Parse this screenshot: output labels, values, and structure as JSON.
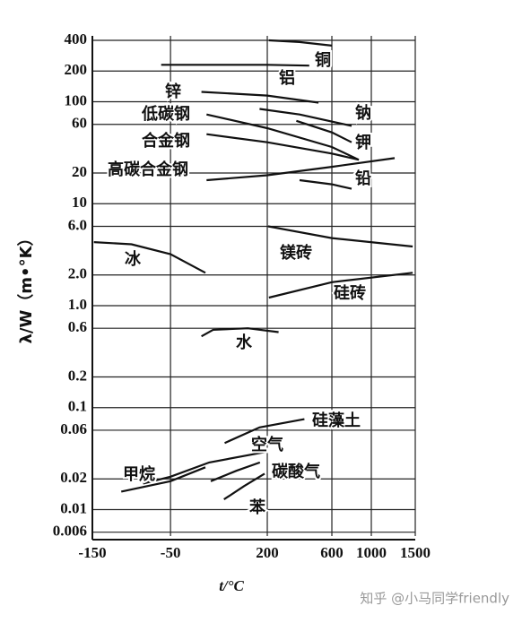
{
  "chart_data": {
    "type": "line",
    "x_label": "t/°C",
    "y_label": "λ/W（m•°K）",
    "watermark": "知乎 @小马同学friendly",
    "y_log": true,
    "grid": true,
    "color": "#111",
    "xlim": [
      -150,
      1500
    ],
    "xticks": [
      -150,
      -50,
      200,
      600,
      1000,
      1500
    ],
    "ylim": [
      0.0055,
      400
    ],
    "yticks": [
      400,
      200,
      100,
      60,
      20,
      10,
      {
        "value": 6,
        "label": "6.0"
      },
      {
        "value": 2,
        "label": "2.0"
      },
      {
        "value": 1,
        "label": "1.0"
      },
      0.6,
      0.2,
      0.1,
      0.06,
      0.02,
      0.01,
      0.006
    ],
    "series": [
      {
        "name": "铜",
        "x": [
          210,
          400,
          600
        ],
        "values": [
          400,
          385,
          355
        ]
      },
      {
        "name": "铝",
        "x": [
          -62,
          200,
          460
        ],
        "values": [
          230,
          230,
          226
        ]
      },
      {
        "name": "锌",
        "x": [
          30,
          200,
          517
        ],
        "values": [
          125,
          115,
          98
        ]
      },
      {
        "name": "钠",
        "x": [
          180,
          400,
          800
        ],
        "values": [
          85,
          75,
          58
        ]
      },
      {
        "name": "钾",
        "x": [
          380,
          600,
          800
        ],
        "values": [
          65,
          50,
          40
        ]
      },
      {
        "name": "铅",
        "x": [
          400,
          600,
          800
        ],
        "values": [
          17,
          15.5,
          14
        ]
      },
      {
        "name": "低碳钢",
        "x": [
          43,
          200,
          600,
          873
        ],
        "values": [
          75,
          55,
          36,
          27
        ]
      },
      {
        "name": "合金钢",
        "x": [
          43,
          200,
          600,
          873
        ],
        "values": [
          48,
          40,
          31,
          27
        ]
      },
      {
        "name": "高碳合金钢",
        "x": [
          43,
          200,
          600,
          1265
        ],
        "values": [
          17,
          19,
          23,
          28
        ]
      },
      {
        "name": "镁砖",
        "x": [
          205,
          600,
          1470
        ],
        "values": [
          6.0,
          4.6,
          3.8
        ]
      },
      {
        "name": "硅砖",
        "x": [
          210,
          600,
          1470
        ],
        "values": [
          1.2,
          1.7,
          2.1
        ]
      },
      {
        "name": "冰",
        "x": [
          -148,
          -100,
          -50,
          40
        ],
        "values": [
          4.2,
          4.0,
          3.2,
          2.1
        ]
      },
      {
        "name": "水",
        "x": [
          30,
          60,
          150,
          270
        ],
        "values": [
          0.5,
          0.58,
          0.6,
          0.55
        ]
      },
      {
        "name": "硅藻土",
        "x": [
          90,
          180,
          430
        ],
        "values": [
          0.045,
          0.064,
          0.077
        ]
      },
      {
        "name": "空气",
        "x": [
          -85,
          -50,
          50,
          200
        ],
        "values": [
          0.018,
          0.021,
          0.029,
          0.037
        ]
      },
      {
        "name": "甲烷",
        "x": [
          -113,
          -50,
          40
        ],
        "values": [
          0.015,
          0.019,
          0.026
        ]
      },
      {
        "name": "碳酸气",
        "x": [
          54,
          120,
          181
        ],
        "values": [
          0.019,
          0.024,
          0.029
        ]
      },
      {
        "name": "苯",
        "x": [
          88,
          140,
          193
        ],
        "values": [
          0.0126,
          0.017,
          0.0225
        ]
      }
    ]
  }
}
